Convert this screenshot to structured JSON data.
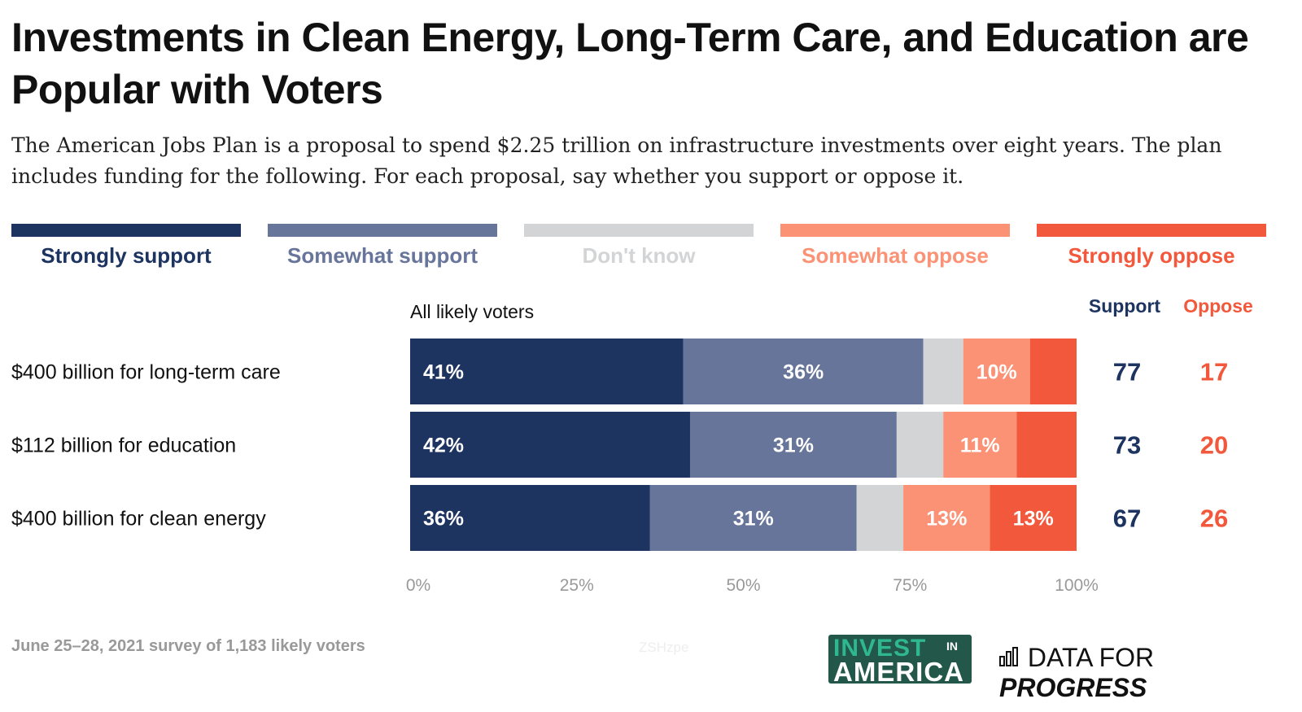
{
  "title": "Investments in Clean Energy, Long-Term Care, and Education are Popular with Voters",
  "subtitle": "The American Jobs Plan is a proposal to spend $2.25 trillion on infrastructure investments over eight years. The plan includes funding for the following. For each proposal, say whether you support or oppose it.",
  "footer": {
    "note": "June 25–28, 2021 survey of 1,183 likely voters",
    "watermark": "ZSHzpe",
    "logo1_top": "INVEST",
    "logo1_in": "IN",
    "logo1_bottom": "AMERICA",
    "logo2_a": "DATA FOR",
    "logo2_b": "PROGRESS"
  },
  "chart_data": {
    "type": "bar",
    "orientation": "horizontal",
    "stacked": true,
    "group_label": "All likely voters",
    "categories": [
      "$400 billion for long-term care",
      "$112 billion for education",
      "$400 billion for clean energy"
    ],
    "series": [
      {
        "name": "Strongly support",
        "color": "#1d3461",
        "values": [
          41,
          42,
          36
        ]
      },
      {
        "name": "Somewhat support",
        "color": "#68759a",
        "values": [
          36,
          31,
          31
        ]
      },
      {
        "name": "Don't know",
        "color": "#d3d4d6",
        "values": [
          6,
          7,
          7
        ]
      },
      {
        "name": "Somewhat oppose",
        "color": "#fb9275",
        "values": [
          10,
          11,
          13
        ]
      },
      {
        "name": "Strongly oppose",
        "color": "#f2593c",
        "values": [
          7,
          9,
          13
        ]
      }
    ],
    "data_labels_shown": [
      [
        true,
        true,
        false,
        true,
        false
      ],
      [
        true,
        true,
        false,
        true,
        false
      ],
      [
        true,
        true,
        false,
        true,
        true
      ]
    ],
    "totals": {
      "support_label": "Support",
      "oppose_label": "Oppose",
      "support": [
        77,
        73,
        67
      ],
      "oppose": [
        17,
        20,
        26
      ]
    },
    "xlim": [
      0,
      100
    ],
    "xticks": [
      "0%",
      "25%",
      "50%",
      "75%",
      "100%"
    ],
    "legend": "top"
  }
}
